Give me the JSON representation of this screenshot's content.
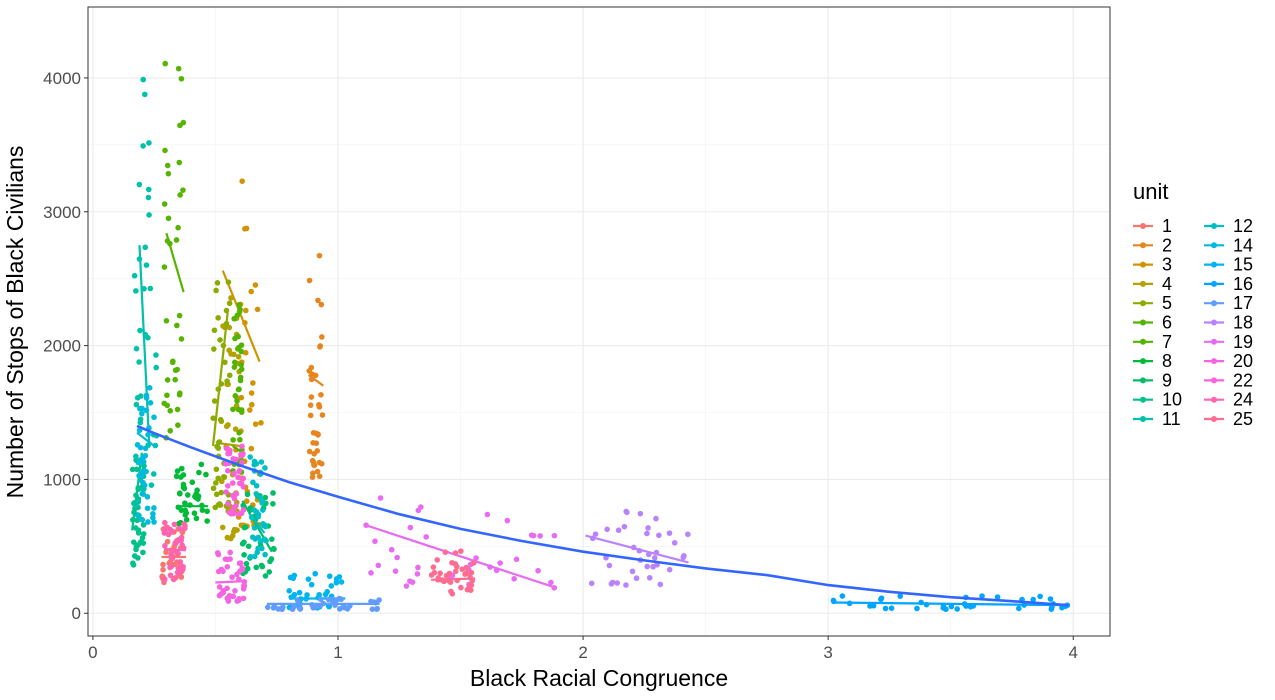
{
  "chart_data": {
    "type": "scatter",
    "xlabel": "Black Racial Congruence",
    "ylabel": "Number of Stops of Black Civilians",
    "xlim": [
      -0.02,
      4.15
    ],
    "ylim": [
      -170,
      4530
    ],
    "x_ticks": [
      0,
      1,
      2,
      3,
      4
    ],
    "y_ticks": [
      0,
      1000,
      2000,
      3000,
      4000
    ],
    "grid": true,
    "legend_title": "unit",
    "legend_position": "right",
    "series": [
      {
        "name": "1",
        "color": "#F8766D",
        "x_range": [
          0.28,
          0.38
        ],
        "y_range": [
          230,
          660
        ],
        "line": [
          [
            0.28,
            420
          ],
          [
            0.38,
            420
          ]
        ]
      },
      {
        "name": "2",
        "color": "#E7851E",
        "x_range": [
          0.88,
          0.94
        ],
        "y_range": [
          1010,
          2710
        ],
        "line": [
          [
            0.88,
            1780
          ],
          [
            0.94,
            1700
          ]
        ]
      },
      {
        "name": "3",
        "color": "#D09400",
        "x_range": [
          0.58,
          0.69
        ],
        "y_range": [
          650,
          3260
        ],
        "line": [
          [
            0.53,
            2560
          ],
          [
            0.68,
            1880
          ]
        ]
      },
      {
        "name": "4",
        "color": "#B2A100",
        "x_range": [
          0.52,
          0.6
        ],
        "y_range": [
          540,
          2480
        ],
        "line": [
          [
            0.52,
            1270
          ],
          [
            0.6,
            1250
          ]
        ]
      },
      {
        "name": "5",
        "color": "#8BAB00",
        "x_range": [
          0.49,
          0.56
        ],
        "y_range": [
          790,
          2480
        ],
        "line": [
          [
            0.49,
            1250
          ],
          [
            0.55,
            2250
          ]
        ]
      },
      {
        "name": "6",
        "color": "#55B400",
        "x_range": [
          0.29,
          0.37
        ],
        "y_range": [
          1290,
          4340
        ],
        "line": [
          [
            0.3,
            2840
          ],
          [
            0.37,
            2400
          ]
        ]
      },
      {
        "name": "7",
        "color": "#53B400",
        "x_range": [
          0.57,
          0.61
        ],
        "y_range": [
          1050,
          2350
        ],
        "line": [
          [
            0.57,
            1250
          ],
          [
            0.61,
            1200
          ]
        ]
      },
      {
        "name": "8",
        "color": "#00BA38",
        "x_range": [
          0.34,
          0.47
        ],
        "y_range": [
          660,
          1140
        ],
        "line": [
          [
            0.34,
            800
          ],
          [
            0.47,
            800
          ]
        ]
      },
      {
        "name": "9",
        "color": "#00BE67",
        "x_range": [
          0.61,
          0.74
        ],
        "y_range": [
          270,
          900
        ],
        "line": [
          [
            0.61,
            840
          ],
          [
            0.73,
            460
          ]
        ]
      },
      {
        "name": "10",
        "color": "#00C08B",
        "x_range": [
          0.16,
          0.21
        ],
        "y_range": [
          330,
          1200
        ],
        "line": [
          [
            0.16,
            620
          ],
          [
            0.2,
            1200
          ]
        ]
      },
      {
        "name": "11",
        "color": "#00C1AA",
        "x_range": [
          0.17,
          0.26
        ],
        "y_range": [
          800,
          4090
        ],
        "line": [
          [
            0.19,
            2750
          ],
          [
            0.23,
            1250
          ]
        ]
      },
      {
        "name": "12",
        "color": "#00BFC4",
        "x_range": [
          0.64,
          0.71
        ],
        "y_range": [
          420,
          1170
        ],
        "line": [
          [
            0.64,
            740
          ],
          [
            0.7,
            600
          ]
        ]
      },
      {
        "name": "14",
        "color": "#00BBDB",
        "x_range": [
          0.18,
          0.25
        ],
        "y_range": [
          680,
          1700
        ],
        "line": [
          [
            0.18,
            1350
          ],
          [
            0.25,
            1250
          ]
        ]
      },
      {
        "name": "15",
        "color": "#00B4F0",
        "x_range": [
          0.8,
          1.03
        ],
        "y_range": [
          40,
          300
        ],
        "line": [
          [
            0.8,
            110
          ],
          [
            1.03,
            110
          ]
        ]
      },
      {
        "name": "16",
        "color": "#00A5FF",
        "x_range": [
          3.02,
          3.98
        ],
        "y_range": [
          30,
          130
        ],
        "line": [
          [
            3.02,
            80
          ],
          [
            3.98,
            60
          ]
        ]
      },
      {
        "name": "17",
        "color": "#619CFF",
        "x_range": [
          0.71,
          1.17
        ],
        "y_range": [
          30,
          110
        ],
        "line": [
          [
            0.71,
            70
          ],
          [
            1.17,
            70
          ]
        ]
      },
      {
        "name": "18",
        "color": "#B983FF",
        "x_range": [
          2.01,
          2.43
        ],
        "y_range": [
          200,
          770
        ],
        "line": [
          [
            2.01,
            580
          ],
          [
            2.43,
            380
          ]
        ]
      },
      {
        "name": "19",
        "color": "#E76BF3",
        "x_range": [
          1.11,
          1.89
        ],
        "y_range": [
          170,
          870
        ],
        "line": [
          [
            1.11,
            660
          ],
          [
            1.89,
            190
          ]
        ]
      },
      {
        "name": "20",
        "color": "#F564E3",
        "x_range": [
          0.5,
          0.62
        ],
        "y_range": [
          90,
          460
        ],
        "line": [
          [
            0.5,
            230
          ],
          [
            0.62,
            240
          ]
        ]
      },
      {
        "name": "22",
        "color": "#FA62DB",
        "x_range": [
          0.54,
          0.62
        ],
        "y_range": [
          740,
          1250
        ],
        "line": [
          [
            0.54,
            1100
          ],
          [
            0.62,
            1180
          ]
        ]
      },
      {
        "name": "24",
        "color": "#FF64B0",
        "x_range": [
          0.29,
          0.38
        ],
        "y_range": [
          250,
          720
        ],
        "line": [
          [
            0.29,
            480
          ],
          [
            0.38,
            470
          ]
        ]
      },
      {
        "name": "25",
        "color": "#FF6C91",
        "x_range": [
          1.38,
          1.56
        ],
        "y_range": [
          140,
          470
        ],
        "line": [
          [
            1.38,
            250
          ],
          [
            1.56,
            260
          ]
        ]
      }
    ],
    "overall_trend": {
      "color": "#3366FF",
      "points": [
        [
          0.18,
          1400
        ],
        [
          0.25,
          1345
        ],
        [
          0.4,
          1240
        ],
        [
          0.6,
          1105
        ],
        [
          0.8,
          980
        ],
        [
          1.0,
          870
        ],
        [
          1.25,
          740
        ],
        [
          1.5,
          630
        ],
        [
          1.75,
          540
        ],
        [
          2.0,
          460
        ],
        [
          2.25,
          395
        ],
        [
          2.5,
          335
        ],
        [
          2.75,
          285
        ],
        [
          3.0,
          210
        ],
        [
          3.25,
          160
        ],
        [
          3.5,
          120
        ],
        [
          3.75,
          90
        ],
        [
          3.98,
          60
        ]
      ]
    }
  }
}
